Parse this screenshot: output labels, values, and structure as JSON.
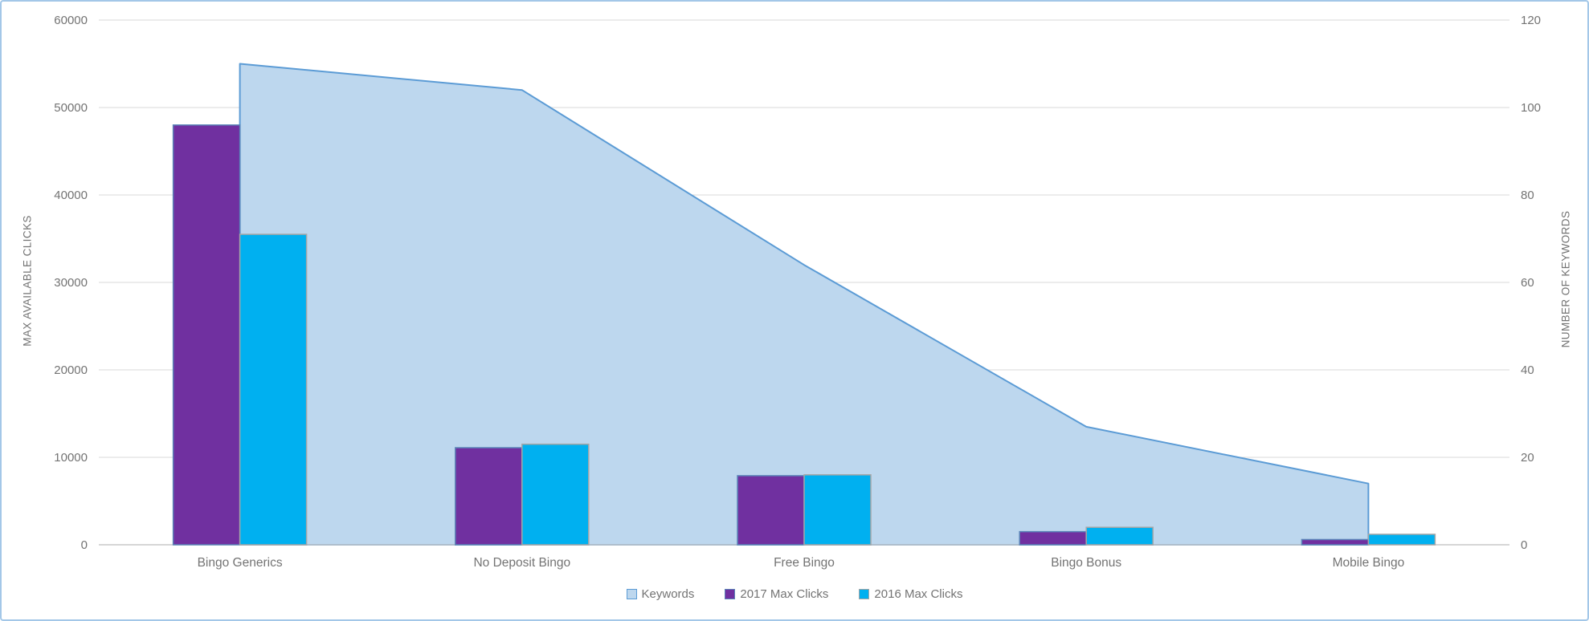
{
  "chart_data": {
    "type": "combo",
    "title": "",
    "categories": [
      "Bingo Generics",
      "No Deposit Bingo",
      "Free Bingo",
      "Bingo Bonus",
      "Mobile Bingo"
    ],
    "series": [
      {
        "name": "Keywords",
        "type": "area",
        "axis": "right",
        "values": [
          110,
          104,
          64,
          27,
          14
        ],
        "fill": "#bdd7ee",
        "stroke": "#5b9bd5"
      },
      {
        "name": "2017 Max Clicks",
        "type": "bar",
        "axis": "left",
        "values": [
          48000,
          11100,
          7900,
          1500,
          600
        ],
        "fill": "#7030a0",
        "stroke": "#5b85b8"
      },
      {
        "name": "2016 Max Clicks",
        "type": "bar",
        "axis": "left",
        "values": [
          35500,
          11500,
          8000,
          2000,
          1200
        ],
        "fill": "#00b0f0",
        "stroke": "#a6a6a6"
      }
    ],
    "left_axis": {
      "label": "MAX AVAILABLE CLICKS",
      "min": 0,
      "max": 60000,
      "step": 10000,
      "ticks": [
        0,
        10000,
        20000,
        30000,
        40000,
        50000,
        60000
      ]
    },
    "right_axis": {
      "label": "NUMBER OF KEYWORDS",
      "min": 0,
      "max": 120,
      "step": 20,
      "ticks": [
        0,
        20,
        40,
        60,
        80,
        100,
        120
      ]
    },
    "legend": {
      "position": "bottom",
      "items": [
        "Keywords",
        "2017 Max Clicks",
        "2016 Max Clicks"
      ]
    },
    "grid": true,
    "colors": {
      "grid": "#d9d9d9",
      "axis_line": "#c9c9c9",
      "text": "#737373",
      "frame_border": "#a3c7e8",
      "background": "#ffffff"
    }
  }
}
